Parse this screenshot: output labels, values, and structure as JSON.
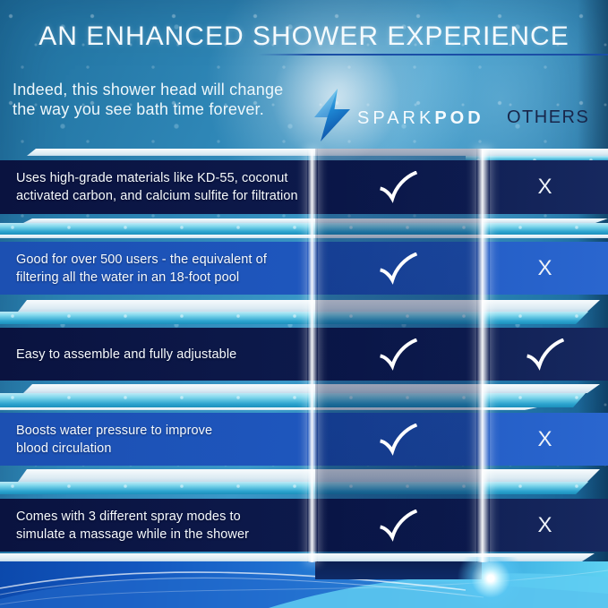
{
  "header": {
    "title": "AN ENHANCED SHOWER EXPERIENCE",
    "subtitle_line1": "Indeed, this shower head will change",
    "subtitle_line2": "the way you see bath time forever."
  },
  "brand": {
    "name_part1": "SPARK",
    "name_part2": "POD",
    "logo_icon": "lightning-bolt-icon",
    "competitor_label": "OTHERS"
  },
  "comparison": {
    "check_symbol": "✓",
    "x_symbol": "X",
    "rows": [
      {
        "feature_line1": "Uses high-grade materials like KD-55, coconut",
        "feature_line2": "activated carbon, and calcium sulfite for filtration",
        "sparkpod": "check",
        "others": "x"
      },
      {
        "feature_line1": "Good for over 500 users - the equivalent of",
        "feature_line2": "filtering all the water in an 18-foot pool",
        "sparkpod": "check",
        "others": "x"
      },
      {
        "feature_line1": "Easy to assemble and fully adjustable",
        "feature_line2": "",
        "sparkpod": "check",
        "others": "check"
      },
      {
        "feature_line1": "Boosts water pressure to improve",
        "feature_line2": "blood circulation",
        "sparkpod": "check",
        "others": "x"
      },
      {
        "feature_line1": "Comes with 3 different spray modes to",
        "feature_line2": "simulate a massage while in the shower",
        "sparkpod": "check",
        "others": "x"
      }
    ]
  },
  "colors": {
    "background_blue": "#2e86b6",
    "row_dark_navy": "#0c1947",
    "row_royal_blue": "#1e55bd",
    "stripe_cyan": "#2da4cf",
    "stripe_white": "#e9f4fa",
    "mark_white": "#ffffff",
    "others_text": "#18264a",
    "title_underline": "#1a4ea6",
    "logo_blue_light": "#7ee0f8",
    "logo_blue_dark": "#0c4fa6"
  }
}
